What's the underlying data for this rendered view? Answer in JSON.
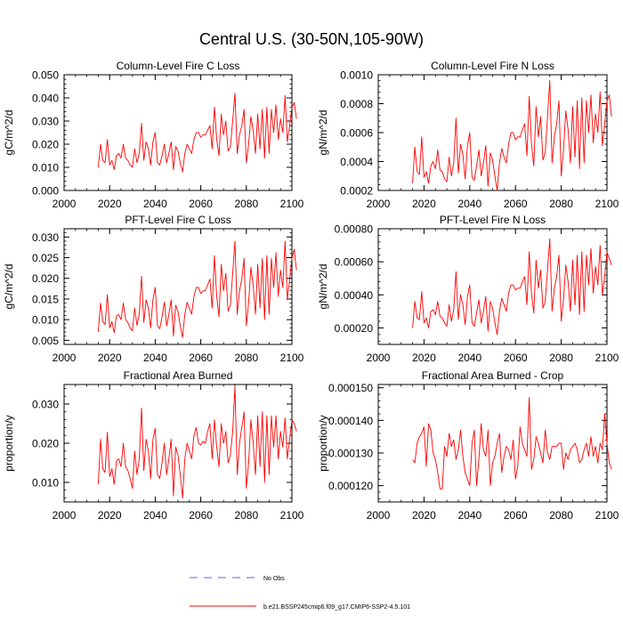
{
  "main_title": "Central U.S. (30-50N,105-90W)",
  "legend": {
    "items": [
      {
        "label": "No Obs",
        "style": "dashed",
        "color": "#6666cc"
      },
      {
        "label": "b.e21.BSSP245cmip6.f09_g17.CMIP6-SSP2-4.5.101",
        "style": "solid",
        "color": "#ff0000"
      }
    ]
  },
  "chart_data": [
    {
      "type": "line",
      "title": "Column-Level Fire C Loss",
      "xlabel": "",
      "ylabel": "gC/m^2/d",
      "xlim": [
        2000,
        2100
      ],
      "ylim": [
        0.0,
        0.05
      ],
      "xticks": [
        2000,
        2020,
        2040,
        2060,
        2080,
        2100
      ],
      "xtick_labels": [
        "2000",
        "2020",
        "2040",
        "2060",
        "2080",
        "2100"
      ],
      "yticks": [
        0.0,
        0.01,
        0.02,
        0.03,
        0.04,
        0.05
      ],
      "ytick_labels": [
        "0.000",
        "0.010",
        "0.020",
        "0.030",
        "0.040",
        "0.050"
      ],
      "x_start": 2015,
      "series": [
        {
          "name": "b.e21.BSSP245cmip6.f09_g17.CMIP6-SSP2-4.5.101",
          "color": "#ff0000",
          "values": [
            0.01,
            0.02,
            0.013,
            0.012,
            0.022,
            0.011,
            0.013,
            0.009,
            0.015,
            0.016,
            0.014,
            0.02,
            0.014,
            0.013,
            0.011,
            0.01,
            0.018,
            0.012,
            0.016,
            0.029,
            0.013,
            0.021,
            0.018,
            0.011,
            0.021,
            0.025,
            0.012,
            0.011,
            0.015,
            0.02,
            0.012,
            0.016,
            0.021,
            0.009,
            0.019,
            0.017,
            0.012,
            0.008,
            0.016,
            0.02,
            0.018,
            0.016,
            0.022,
            0.025,
            0.025,
            0.023,
            0.024,
            0.024,
            0.026,
            0.028,
            0.018,
            0.036,
            0.022,
            0.015,
            0.033,
            0.024,
            0.03,
            0.017,
            0.019,
            0.03,
            0.042,
            0.016,
            0.024,
            0.028,
            0.035,
            0.012,
            0.02,
            0.032,
            0.026,
            0.016,
            0.033,
            0.018,
            0.035,
            0.014,
            0.036,
            0.016,
            0.035,
            0.025,
            0.037,
            0.022,
            0.031,
            0.025,
            0.041,
            0.021,
            0.028,
            0.036,
            0.038,
            0.031
          ]
        }
      ]
    },
    {
      "type": "line",
      "title": "Column-Level Fire N Loss",
      "xlabel": "",
      "ylabel": "gN/m^2/d",
      "xlim": [
        2000,
        2100
      ],
      "ylim": [
        0.0002,
        0.001
      ],
      "xticks": [
        2000,
        2020,
        2040,
        2060,
        2080,
        2100
      ],
      "xtick_labels": [
        "2000",
        "2020",
        "2040",
        "2060",
        "2080",
        "2100"
      ],
      "yticks": [
        0.0002,
        0.0004,
        0.0006,
        0.0008,
        0.001
      ],
      "ytick_labels": [
        "0.0002",
        "0.0004",
        "0.0006",
        "0.0008",
        "0.0010"
      ],
      "x_start": 2015,
      "series": [
        {
          "name": "b.e21.BSSP245cmip6.f09_g17.CMIP6-SSP2-4.5.101",
          "color": "#ff0000",
          "values": [
            0.00025,
            0.0005,
            0.00033,
            0.00031,
            0.00057,
            0.00029,
            0.00033,
            0.00025,
            0.00037,
            0.0004,
            0.00035,
            0.00048,
            0.00034,
            0.00033,
            0.00028,
            0.00026,
            0.00043,
            0.0003,
            0.00039,
            0.0007,
            0.00032,
            0.00052,
            0.00045,
            0.00028,
            0.00051,
            0.0006,
            0.00029,
            0.00027,
            0.00037,
            0.00048,
            0.0003,
            0.00039,
            0.00051,
            0.00023,
            0.00046,
            0.00041,
            0.0003,
            0.0002,
            0.00039,
            0.00049,
            0.00043,
            0.00039,
            0.00052,
            0.0006,
            0.0006,
            0.00055,
            0.00057,
            0.00057,
            0.00062,
            0.00066,
            0.00044,
            0.00085,
            0.00052,
            0.00037,
            0.00078,
            0.00057,
            0.00071,
            0.00041,
            0.00046,
            0.00071,
            0.00096,
            0.00039,
            0.00057,
            0.00066,
            0.00082,
            0.0003,
            0.00048,
            0.00075,
            0.00062,
            0.00039,
            0.00078,
            0.00043,
            0.00082,
            0.00035,
            0.00084,
            0.00039,
            0.00082,
            0.0006,
            0.00086,
            0.00053,
            0.00073,
            0.0006,
            0.00088,
            0.00051,
            0.00066,
            0.00082,
            0.00086,
            0.00071
          ]
        }
      ]
    },
    {
      "type": "line",
      "title": "PFT-Level Fire C Loss",
      "xlabel": "",
      "ylabel": "gC/m^2/d",
      "xlim": [
        2000,
        2100
      ],
      "ylim": [
        0.004,
        0.032
      ],
      "xticks": [
        2000,
        2020,
        2040,
        2060,
        2080,
        2100
      ],
      "xtick_labels": [
        "2000",
        "2020",
        "2040",
        "2060",
        "2080",
        "2100"
      ],
      "yticks": [
        0.005,
        0.01,
        0.015,
        0.02,
        0.025,
        0.03
      ],
      "ytick_labels": [
        "0.005",
        "0.010",
        "0.015",
        "0.020",
        "0.025",
        "0.030"
      ],
      "x_start": 2015,
      "series": [
        {
          "name": "b.e21.BSSP245cmip6.f09_g17.CMIP6-SSP2-4.5.101",
          "color": "#ff0000",
          "values": [
            0.007,
            0.014,
            0.0095,
            0.0088,
            0.016,
            0.008,
            0.0095,
            0.0068,
            0.011,
            0.0112,
            0.01,
            0.014,
            0.01,
            0.0093,
            0.008,
            0.0073,
            0.0128,
            0.0086,
            0.0113,
            0.0205,
            0.0093,
            0.0148,
            0.0128,
            0.008,
            0.0148,
            0.0178,
            0.0085,
            0.0078,
            0.0107,
            0.0142,
            0.0085,
            0.0113,
            0.0148,
            0.006,
            0.0135,
            0.012,
            0.0085,
            0.0057,
            0.0113,
            0.0142,
            0.0128,
            0.0113,
            0.0156,
            0.0178,
            0.0178,
            0.0163,
            0.017,
            0.017,
            0.0184,
            0.0198,
            0.0128,
            0.0255,
            0.0156,
            0.0107,
            0.0234,
            0.017,
            0.0212,
            0.012,
            0.0135,
            0.0212,
            0.029,
            0.0113,
            0.017,
            0.0198,
            0.0248,
            0.0085,
            0.0142,
            0.0227,
            0.0184,
            0.0113,
            0.0234,
            0.0128,
            0.0248,
            0.01,
            0.0255,
            0.0113,
            0.0248,
            0.0178,
            0.0262,
            0.0156,
            0.022,
            0.0178,
            0.029,
            0.0148,
            0.0198,
            0.0248,
            0.027,
            0.022
          ]
        }
      ]
    },
    {
      "type": "line",
      "title": "PFT-Level Fire N Loss",
      "xlabel": "",
      "ylabel": "gN/m^2/d",
      "xlim": [
        2000,
        2100
      ],
      "ylim": [
        0.0001,
        0.0008
      ],
      "xticks": [
        2000,
        2020,
        2040,
        2060,
        2080,
        2100
      ],
      "xtick_labels": [
        "2000",
        "2020",
        "2040",
        "2060",
        "2080",
        "2100"
      ],
      "yticks": [
        0.0002,
        0.0004,
        0.0006,
        0.0008
      ],
      "ytick_labels": [
        "0.00020",
        "0.00040",
        "0.00060",
        "0.00080"
      ],
      "x_start": 2015,
      "series": [
        {
          "name": "b.e21.BSSP245cmip6.f09_g17.CMIP6-SSP2-4.5.101",
          "color": "#ff0000",
          "values": [
            0.0002,
            0.00036,
            0.00026,
            0.00025,
            0.00042,
            0.00023,
            0.00026,
            0.0002,
            0.0003,
            0.00031,
            0.00028,
            0.00036,
            0.00027,
            0.00026,
            0.00023,
            0.00021,
            0.00034,
            0.00024,
            0.00031,
            0.00054,
            0.00025,
            0.0004,
            0.00034,
            0.00022,
            0.00039,
            0.00046,
            0.00023,
            0.00021,
            0.00029,
            0.00037,
            0.00023,
            0.0003,
            0.00039,
            0.00018,
            0.00036,
            0.00032,
            0.00023,
            0.00016,
            0.0003,
            0.00038,
            0.00034,
            0.0003,
            0.00041,
            0.00046,
            0.00046,
            0.00043,
            0.00044,
            0.00044,
            0.00048,
            0.00051,
            0.00034,
            0.00066,
            0.00041,
            0.00029,
            0.00061,
            0.00044,
            0.00055,
            0.00032,
            0.00036,
            0.00055,
            0.00074,
            0.0003,
            0.00044,
            0.00051,
            0.00064,
            0.00024,
            0.00037,
            0.00058,
            0.00048,
            0.0003,
            0.00061,
            0.00034,
            0.00064,
            0.00028,
            0.00066,
            0.0003,
            0.00064,
            0.00046,
            0.00068,
            0.00041,
            0.00057,
            0.00046,
            0.0007,
            0.0004,
            0.00051,
            0.00066,
            0.00062,
            0.00058
          ]
        }
      ]
    },
    {
      "type": "line",
      "title": "Fractional Area Burned",
      "xlabel": "",
      "ylabel": "proportion/y",
      "xlim": [
        2000,
        2100
      ],
      "ylim": [
        0.005,
        0.035
      ],
      "xticks": [
        2000,
        2020,
        2040,
        2060,
        2080,
        2100
      ],
      "xtick_labels": [
        "2000",
        "2020",
        "2040",
        "2060",
        "2080",
        "2100"
      ],
      "yticks": [
        0.01,
        0.02,
        0.03
      ],
      "ytick_labels": [
        "0.010",
        "0.020",
        "0.030"
      ],
      "x_start": 2015,
      "series": [
        {
          "name": "b.e21.BSSP245cmip6.f09_g17.CMIP6-SSP2-4.5.101",
          "color": "#ff0000",
          "values": [
            0.0095,
            0.021,
            0.0135,
            0.0125,
            0.0228,
            0.0115,
            0.0135,
            0.0095,
            0.0155,
            0.016,
            0.014,
            0.02,
            0.014,
            0.013,
            0.011,
            0.0085,
            0.018,
            0.012,
            0.016,
            0.029,
            0.013,
            0.021,
            0.018,
            0.011,
            0.021,
            0.0238,
            0.012,
            0.011,
            0.015,
            0.02,
            0.012,
            0.016,
            0.021,
            0.0065,
            0.019,
            0.017,
            0.012,
            0.006,
            0.016,
            0.02,
            0.018,
            0.016,
            0.022,
            0.024,
            0.02,
            0.0195,
            0.0205,
            0.02,
            0.023,
            0.025,
            0.016,
            0.026,
            0.019,
            0.014,
            0.025,
            0.02,
            0.023,
            0.015,
            0.017,
            0.023,
            0.0345,
            0.012,
            0.02,
            0.024,
            0.028,
            0.0085,
            0.015,
            0.026,
            0.02,
            0.012,
            0.027,
            0.014,
            0.028,
            0.01,
            0.027,
            0.012,
            0.027,
            0.019,
            0.027,
            0.016,
            0.023,
            0.019,
            0.0265,
            0.016,
            0.021,
            0.026,
            0.025,
            0.023
          ]
        }
      ]
    },
    {
      "type": "line",
      "title": "Fractional Area Burned - Crop",
      "xlabel": "",
      "ylabel": "proportion/y",
      "xlim": [
        2000,
        2100
      ],
      "ylim": [
        0.000115,
        0.000151
      ],
      "xticks": [
        2000,
        2020,
        2040,
        2060,
        2080,
        2100
      ],
      "xtick_labels": [
        "2000",
        "2020",
        "2040",
        "2060",
        "2080",
        "2100"
      ],
      "yticks": [
        0.00012,
        0.00013,
        0.00014,
        0.00015
      ],
      "ytick_labels": [
        "0.000120",
        "0.000130",
        "0.000140",
        "0.000150"
      ],
      "x_start": 2015,
      "series": [
        {
          "name": "b.e21.BSSP245cmip6.f09_g17.CMIP6-SSP2-4.5.101",
          "color": "#ff0000",
          "values": [
            0.000128,
            0.000127,
            0.000133,
            0.000135,
            0.000136,
            0.000138,
            0.000126,
            0.000139,
            0.000137,
            0.00013,
            0.000128,
            0.000124,
            0.000119,
            0.000119,
            0.000132,
            0.000129,
            0.000136,
            0.000132,
            0.000134,
            0.000128,
            0.000131,
            0.000137,
            0.000129,
            0.000124,
            0.000122,
            0.00012,
            0.000133,
            0.000137,
            0.00012,
            0.000128,
            0.000139,
            0.000131,
            0.000129,
            0.000137,
            0.00012,
            0.000127,
            0.000129,
            0.000133,
            0.000136,
            0.000124,
            0.000129,
            0.000132,
            0.000131,
            0.000128,
            0.000134,
            0.000122,
            0.000126,
            0.000138,
            0.000133,
            0.000131,
            0.000129,
            0.000147,
            0.000125,
            0.000128,
            0.000135,
            0.000133,
            0.00013,
            0.000127,
            0.000137,
            0.00013,
            0.000128,
            0.000132,
            0.000132,
            0.000132,
            0.000133,
            0.000133,
            0.000125,
            0.00013,
            0.000128,
            0.000131,
            0.000132,
            0.000133,
            0.000131,
            0.000127,
            0.000128,
            0.000131,
            0.000133,
            0.000129,
            0.000135,
            0.000129,
            0.000132,
            0.000127,
            0.000133,
            0.000131,
            0.000142,
            0.000133,
            0.000127,
            0.000125
          ]
        }
      ]
    }
  ]
}
